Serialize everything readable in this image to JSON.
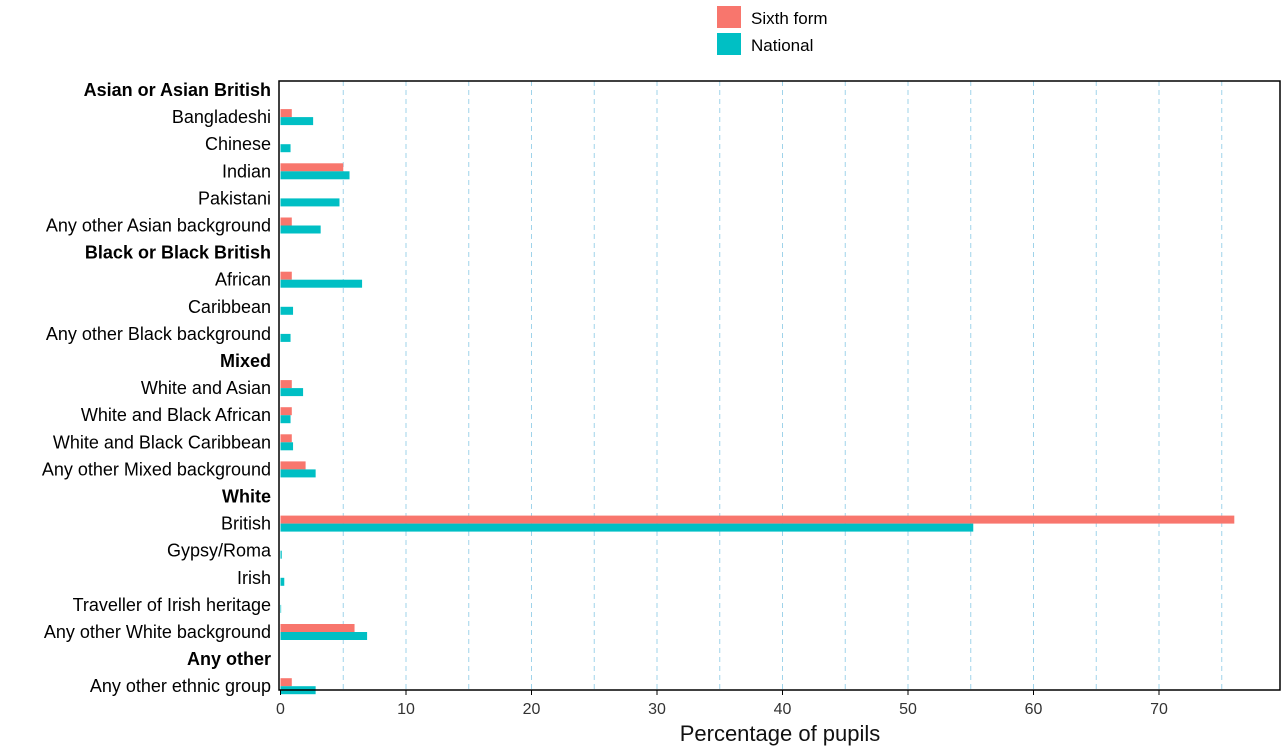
{
  "chart_data": {
    "type": "bar",
    "orientation": "horizontal",
    "xlabel": "Percentage of pupils",
    "ylabel": "",
    "xlim": [
      0,
      80
    ],
    "xticks": [
      0,
      10,
      20,
      30,
      40,
      50,
      60,
      70
    ],
    "minor_gridlines_every": 5,
    "gridlines": "vertical dashed",
    "legend_position": "top",
    "categories": [
      {
        "label": "Asian or Asian British",
        "is_group": true
      },
      {
        "label": "Bangladeshi",
        "is_group": false
      },
      {
        "label": "Chinese",
        "is_group": false
      },
      {
        "label": "Indian",
        "is_group": false
      },
      {
        "label": "Pakistani",
        "is_group": false
      },
      {
        "label": "Any other Asian background",
        "is_group": false
      },
      {
        "label": "Black or Black British",
        "is_group": true
      },
      {
        "label": "African",
        "is_group": false
      },
      {
        "label": "Caribbean",
        "is_group": false
      },
      {
        "label": "Any other Black background",
        "is_group": false
      },
      {
        "label": "Mixed",
        "is_group": true
      },
      {
        "label": "White and Asian",
        "is_group": false
      },
      {
        "label": "White and Black African",
        "is_group": false
      },
      {
        "label": "White and Black Caribbean",
        "is_group": false
      },
      {
        "label": "Any other Mixed background",
        "is_group": false
      },
      {
        "label": "White",
        "is_group": true
      },
      {
        "label": "British",
        "is_group": false
      },
      {
        "label": "Gypsy/Roma",
        "is_group": false
      },
      {
        "label": "Irish",
        "is_group": false
      },
      {
        "label": "Traveller of Irish heritage",
        "is_group": false
      },
      {
        "label": "Any other White background",
        "is_group": false
      },
      {
        "label": "Any other",
        "is_group": true
      },
      {
        "label": "Any other ethnic group",
        "is_group": false
      }
    ],
    "series": [
      {
        "name": "Sixth form",
        "color": "#F8766D",
        "values": [
          null,
          0.9,
          0,
          5.0,
          0,
          0.9,
          null,
          0.9,
          0,
          0,
          null,
          0.9,
          0.9,
          0.9,
          2.0,
          null,
          76.0,
          0,
          0,
          0,
          5.9,
          null,
          0.9
        ]
      },
      {
        "name": "National",
        "color": "#00BFC4",
        "values": [
          null,
          2.6,
          0.8,
          5.5,
          4.7,
          3.2,
          null,
          6.5,
          1.0,
          0.8,
          null,
          1.8,
          0.8,
          1.0,
          2.8,
          null,
          55.2,
          0.1,
          0.3,
          0.05,
          6.9,
          null,
          2.8
        ]
      }
    ]
  }
}
